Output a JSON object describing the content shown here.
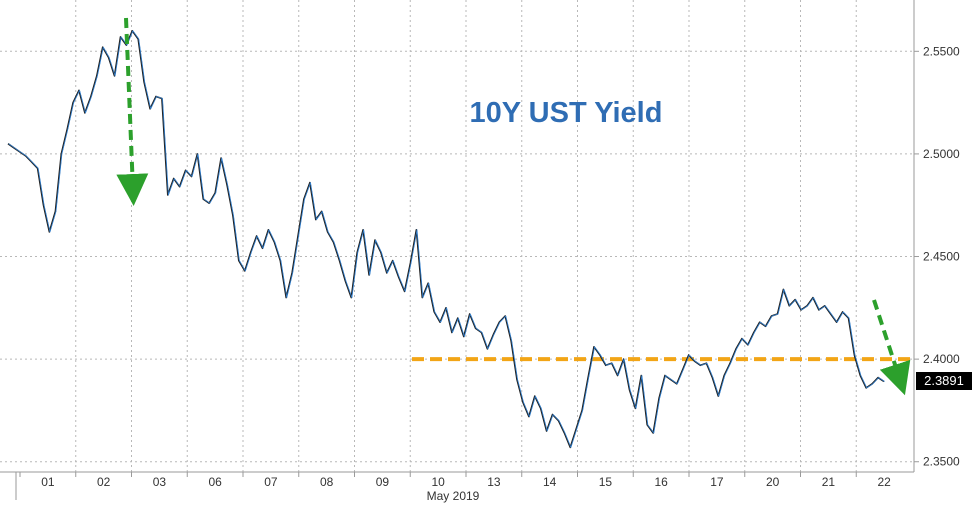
{
  "chart_data": {
    "type": "line",
    "title": "10Y UST Yield",
    "xlabel": "May 2019",
    "ylabel": "",
    "ylim": [
      2.345,
      2.575
    ],
    "y_ticks": [
      "2.3500",
      "2.4000",
      "2.4500",
      "2.5000",
      "2.5500"
    ],
    "x_ticks": [
      "01",
      "02",
      "03",
      "06",
      "07",
      "08",
      "09",
      "10",
      "13",
      "14",
      "15",
      "16",
      "17",
      "20",
      "21",
      "22"
    ],
    "last_value_label": "2.3891",
    "reference_line": {
      "value": 2.4,
      "color": "#f2a516",
      "style": "dashed"
    },
    "series": [
      {
        "values": [
          2.505,
          2.503,
          2.501,
          2.499,
          2.496,
          2.493,
          2.475,
          2.462,
          2.472,
          2.5,
          2.512,
          2.525,
          2.531,
          2.52,
          2.528,
          2.538,
          2.552,
          2.547,
          2.538,
          2.557,
          2.553,
          2.56,
          2.556,
          2.535,
          2.522,
          2.528,
          2.527,
          2.48,
          2.488,
          2.484,
          2.492,
          2.489,
          2.5,
          2.478,
          2.476,
          2.481,
          2.498,
          2.485,
          2.47,
          2.448,
          2.443,
          2.452,
          2.46,
          2.454,
          2.463,
          2.457,
          2.448,
          2.43,
          2.442,
          2.46,
          2.478,
          2.486,
          2.468,
          2.472,
          2.462,
          2.457,
          2.448,
          2.438,
          2.43,
          2.452,
          2.463,
          2.441,
          2.458,
          2.452,
          2.442,
          2.448,
          2.44,
          2.433,
          2.447,
          2.463,
          2.43,
          2.437,
          2.423,
          2.418,
          2.425,
          2.413,
          2.42,
          2.411,
          2.422,
          2.415,
          2.413,
          2.405,
          2.412,
          2.418,
          2.421,
          2.409,
          2.39,
          2.379,
          2.372,
          2.382,
          2.376,
          2.365,
          2.373,
          2.37,
          2.364,
          2.357,
          2.366,
          2.375,
          2.391,
          2.406,
          2.402,
          2.397,
          2.398,
          2.392,
          2.4,
          2.385,
          2.376,
          2.392,
          2.368,
          2.364,
          2.381,
          2.392,
          2.39,
          2.388,
          2.395,
          2.402,
          2.399,
          2.397,
          2.398,
          2.391,
          2.382,
          2.392,
          2.398,
          2.405,
          2.41,
          2.407,
          2.413,
          2.418,
          2.416,
          2.421,
          2.422,
          2.434,
          2.426,
          2.429,
          2.424,
          2.426,
          2.43,
          2.424,
          2.426,
          2.422,
          2.418,
          2.423,
          2.42,
          2.402,
          2.392,
          2.386,
          2.388,
          2.391,
          2.3891
        ]
      }
    ]
  }
}
